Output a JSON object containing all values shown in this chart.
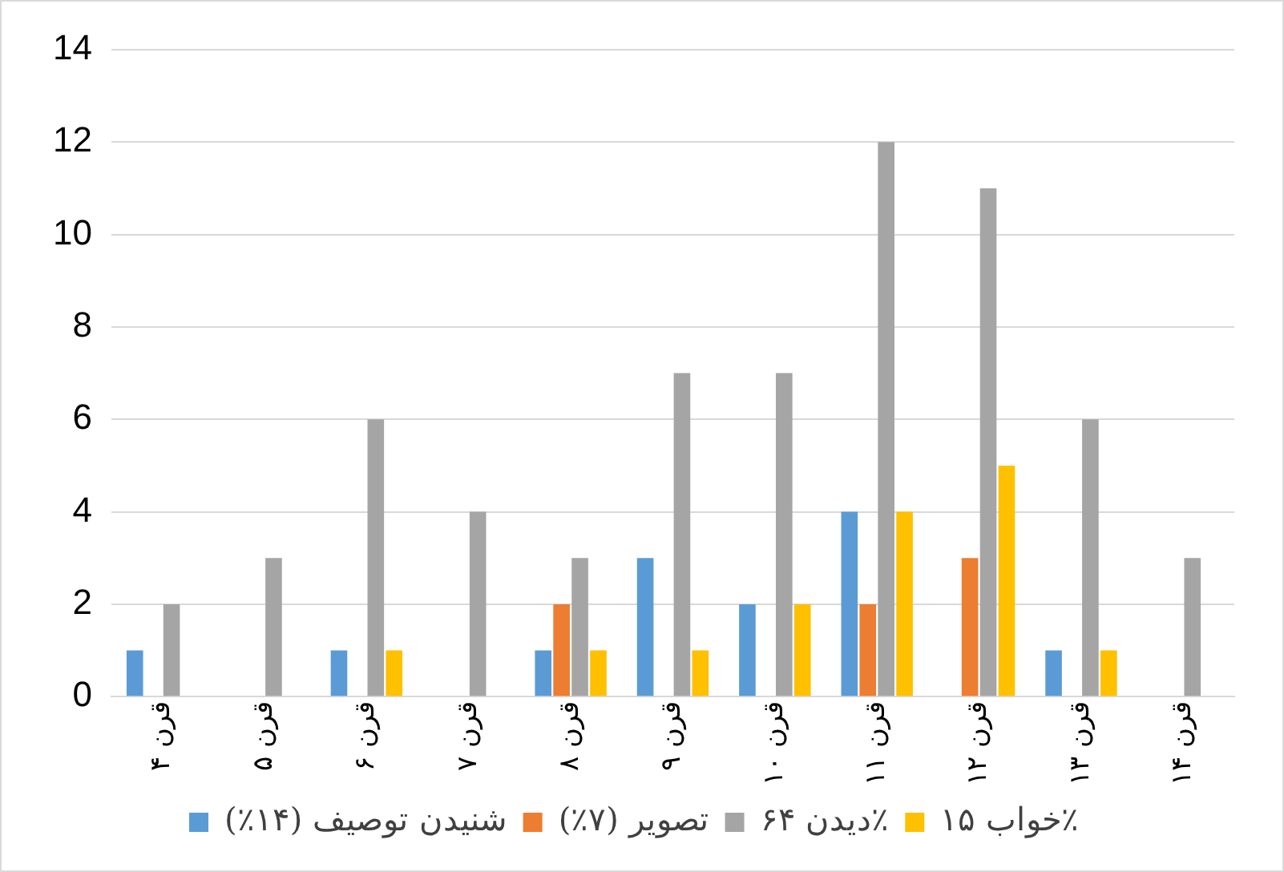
{
  "chart_data": {
    "type": "bar",
    "categories": [
      "قرن ۴",
      "قرن ۵",
      "قرن ۶",
      "قرن ۷",
      "قرن ۸",
      "قرن ۹",
      "قرن ۱۰",
      "قرن ۱۱",
      "قرن ۱۲",
      "قرن ۱۳",
      "قرن ۱۴"
    ],
    "series": [
      {
        "name": "شنیدن توصیف (۱۴٪)",
        "color": "#5b9bd5",
        "values": [
          1,
          0,
          1,
          0,
          1,
          3,
          2,
          4,
          0,
          1,
          0
        ]
      },
      {
        "name": "تصویر (۷٪)",
        "color": "#ed7d31",
        "values": [
          0,
          0,
          0,
          0,
          2,
          0,
          0,
          2,
          3,
          0,
          0
        ]
      },
      {
        "name": "دیدن ۶۴٪",
        "color": "#a5a5a5",
        "values": [
          2,
          3,
          6,
          4,
          3,
          7,
          7,
          12,
          11,
          6,
          3
        ]
      },
      {
        "name": "خواب ۱۵٪",
        "color": "#ffc000",
        "values": [
          0,
          0,
          1,
          0,
          1,
          1,
          2,
          4,
          5,
          1,
          0
        ]
      }
    ],
    "ylim": [
      0,
      14
    ],
    "yticks": [
      0,
      2,
      4,
      6,
      8,
      10,
      12,
      14
    ],
    "grid": "y",
    "legend": "bottom"
  }
}
